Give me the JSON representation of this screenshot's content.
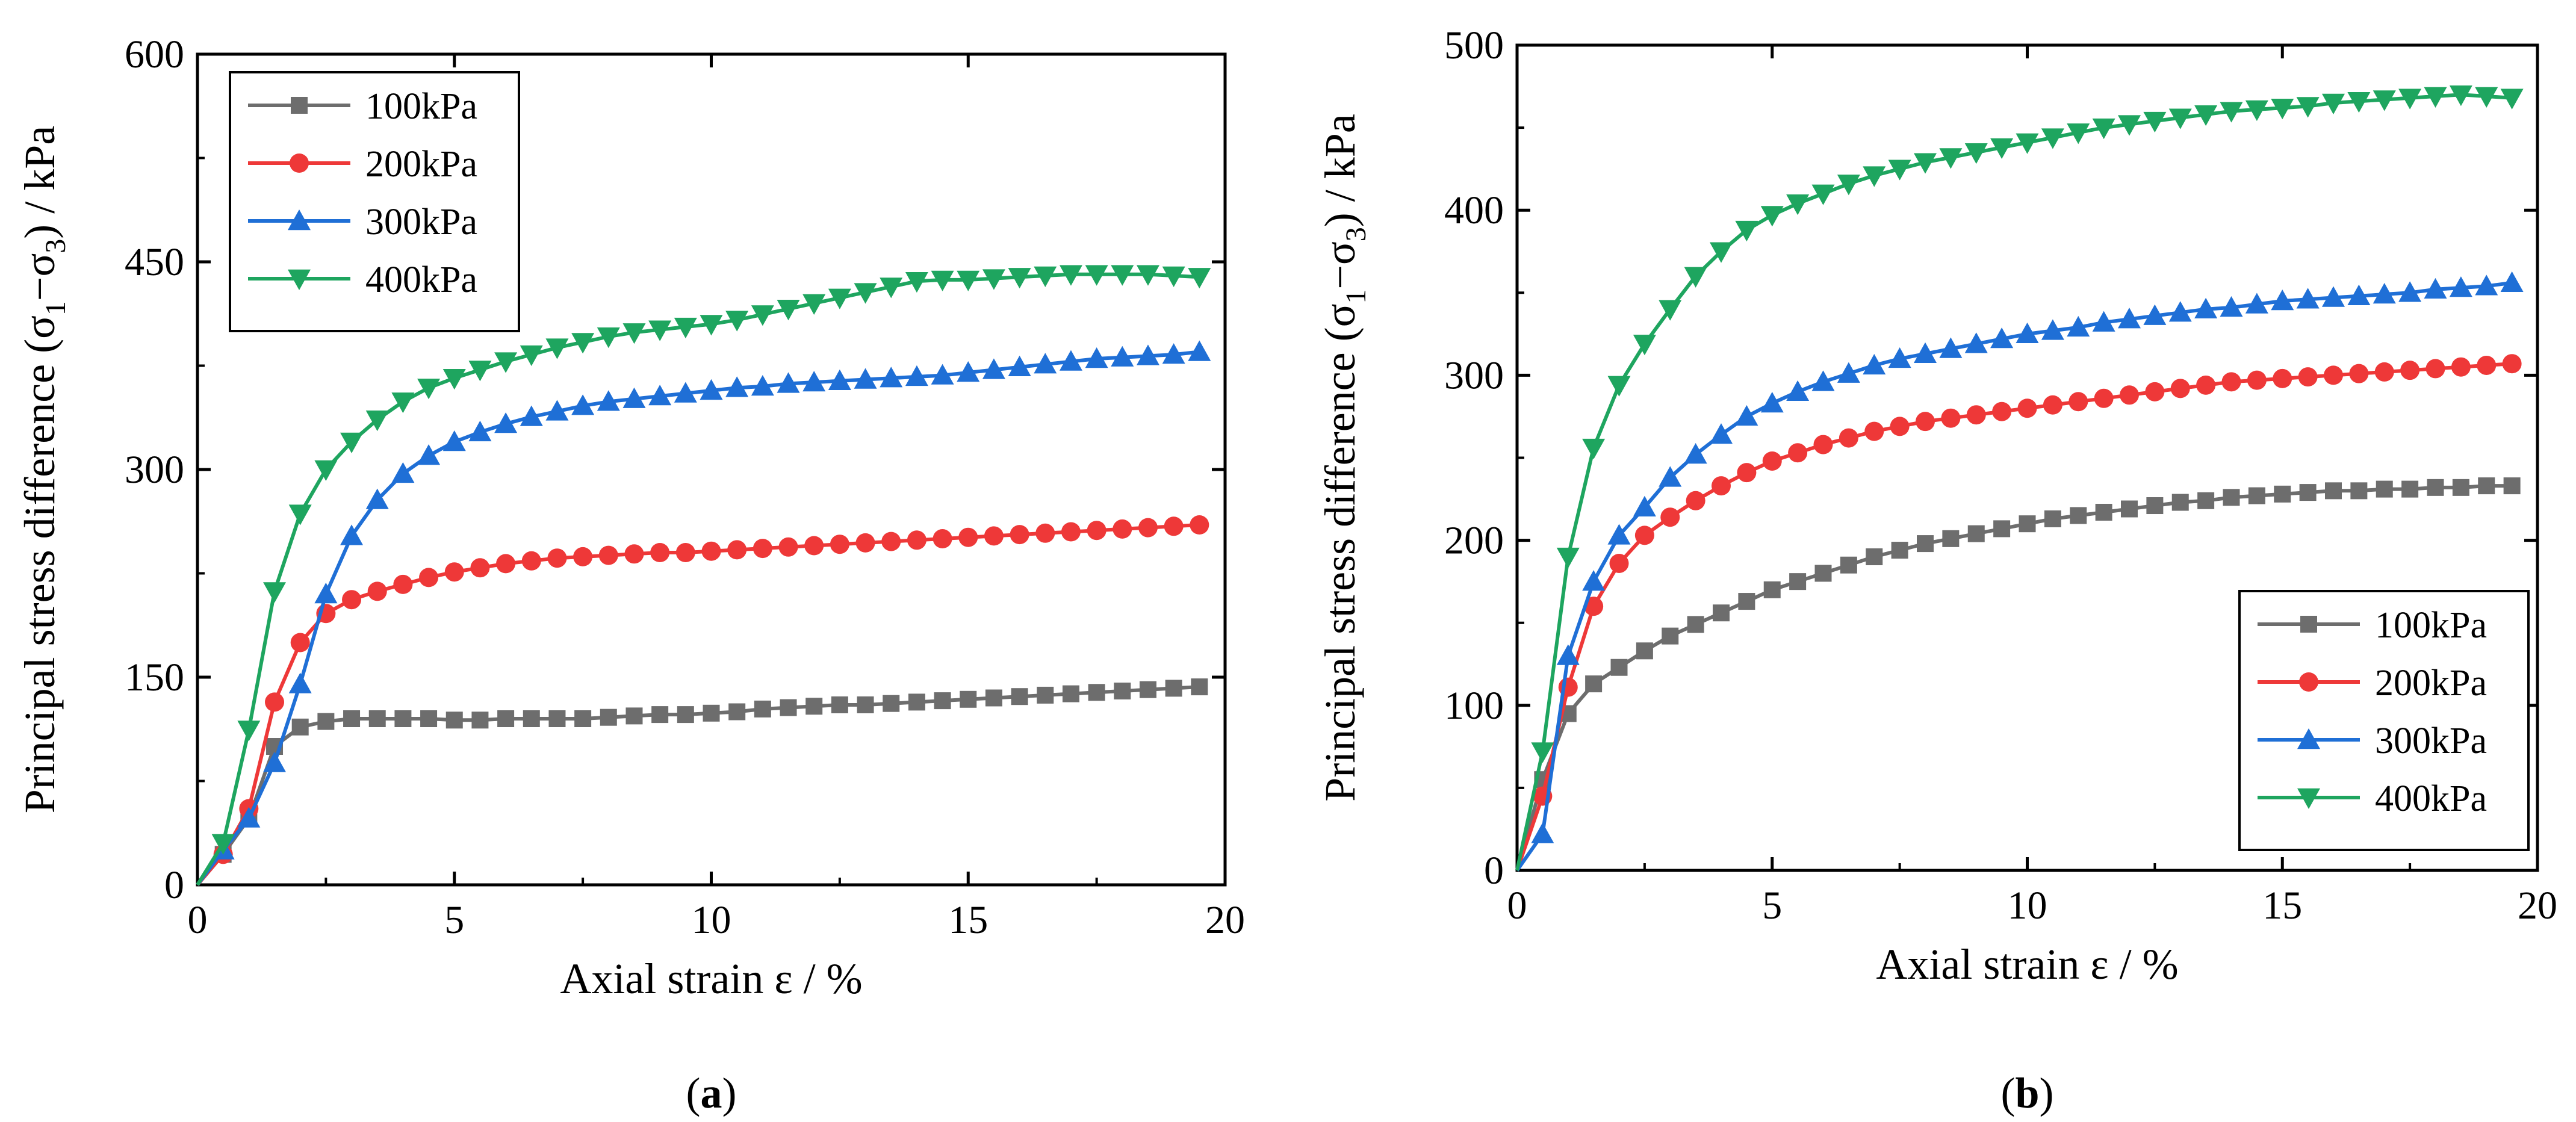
{
  "chart_data": [
    {
      "type": "line",
      "panel_label": "a",
      "xlabel": "Axial strain ε / %",
      "ylabel_prefix": "Principal stress difference  (σ",
      "ylabel_sub1": "1",
      "ylabel_mid": "−σ",
      "ylabel_sub3": "3",
      "ylabel_suffix": ") / kPa",
      "xlim": [
        0,
        20
      ],
      "ylim": [
        0,
        600
      ],
      "xticks": [
        0,
        5,
        10,
        15,
        20
      ],
      "yticks": [
        0,
        150,
        300,
        450,
        600
      ],
      "legend_position": "top-left",
      "series": [
        {
          "name": "100kPa",
          "color": "#6d6d6d",
          "marker": "square",
          "x": [
            0,
            0.5,
            1,
            1.5,
            2,
            2.5,
            3,
            3.5,
            4,
            4.5,
            5,
            5.5,
            6,
            6.5,
            7,
            7.5,
            8,
            8.5,
            9,
            9.5,
            10,
            10.5,
            11,
            11.5,
            12,
            12.5,
            13,
            13.5,
            14,
            14.5,
            15,
            15.5,
            16,
            16.5,
            17,
            17.5,
            18,
            18.5,
            19,
            19.5
          ],
          "y": [
            0,
            22,
            48,
            100,
            114,
            118,
            120,
            120,
            120,
            120,
            119,
            119,
            120,
            120,
            120,
            120,
            121,
            122,
            123,
            123,
            124,
            125,
            127,
            128,
            129,
            130,
            130,
            131,
            132,
            133,
            134,
            135,
            136,
            137,
            138,
            139,
            140,
            141,
            142,
            143
          ]
        },
        {
          "name": "200kPa",
          "color": "#ee3838",
          "marker": "circle",
          "x": [
            0,
            0.5,
            1,
            1.5,
            2,
            2.5,
            3,
            3.5,
            4,
            4.5,
            5,
            5.5,
            6,
            6.5,
            7,
            7.5,
            8,
            8.5,
            9,
            9.5,
            10,
            10.5,
            11,
            11.5,
            12,
            12.5,
            13,
            13.5,
            14,
            14.5,
            15,
            15.5,
            16,
            16.5,
            17,
            17.5,
            18,
            18.5,
            19,
            19.5
          ],
          "y": [
            0,
            22,
            55,
            132,
            175,
            196,
            206,
            212,
            217,
            222,
            226,
            229,
            232,
            234,
            236,
            237,
            238,
            239,
            240,
            240,
            241,
            242,
            243,
            244,
            245,
            246,
            247,
            248,
            249,
            250,
            251,
            252,
            253,
            254,
            255,
            256,
            257,
            258,
            259,
            260
          ]
        },
        {
          "name": "300kPa",
          "color": "#1f6fd6",
          "marker": "triangle-up",
          "x": [
            0,
            0.5,
            1,
            1.5,
            2,
            2.5,
            3,
            3.5,
            4,
            4.5,
            5,
            5.5,
            6,
            6.5,
            7,
            7.5,
            8,
            8.5,
            9,
            9.5,
            10,
            10.5,
            11,
            11.5,
            12,
            12.5,
            13,
            13.5,
            14,
            14.5,
            15,
            15.5,
            16,
            16.5,
            17,
            17.5,
            18,
            18.5,
            19,
            19.5
          ],
          "y": [
            0,
            25,
            48,
            88,
            145,
            210,
            252,
            278,
            297,
            310,
            320,
            327,
            333,
            338,
            342,
            346,
            349,
            351,
            353,
            355,
            357,
            359,
            360,
            362,
            363,
            364,
            365,
            366,
            367,
            368,
            370,
            372,
            374,
            376,
            378,
            380,
            381,
            382,
            383,
            385
          ]
        },
        {
          "name": "400kPa",
          "color": "#1ea55f",
          "marker": "triangle-down",
          "x": [
            0,
            0.5,
            1,
            1.5,
            2,
            2.5,
            3,
            3.5,
            4,
            4.5,
            5,
            5.5,
            6,
            6.5,
            7,
            7.5,
            8,
            8.5,
            9,
            9.5,
            10,
            10.5,
            11,
            11.5,
            12,
            12.5,
            13,
            13.5,
            14,
            14.5,
            15,
            15.5,
            16,
            16.5,
            17,
            17.5,
            18,
            18.5,
            19,
            19.5
          ],
          "y": [
            0,
            30,
            112,
            212,
            268,
            300,
            320,
            336,
            349,
            359,
            366,
            372,
            378,
            383,
            388,
            392,
            396,
            399,
            401,
            403,
            405,
            408,
            412,
            416,
            420,
            424,
            428,
            432,
            436,
            437,
            437,
            438,
            439,
            440,
            441,
            441,
            441,
            441,
            440,
            439
          ]
        }
      ]
    },
    {
      "type": "line",
      "panel_label": "b",
      "xlabel": "Axial strain ε / %",
      "ylabel_prefix": "Principal stress difference  (σ",
      "ylabel_sub1": "1",
      "ylabel_mid": "−σ",
      "ylabel_sub3": "3",
      "ylabel_suffix": ") / kPa",
      "xlim": [
        0,
        20
      ],
      "ylim": [
        0,
        500
      ],
      "xticks": [
        0,
        5,
        10,
        15,
        20
      ],
      "yticks": [
        0,
        100,
        200,
        300,
        400,
        500
      ],
      "legend_position": "bottom-right",
      "series": [
        {
          "name": "100kPa",
          "color": "#6d6d6d",
          "marker": "square",
          "x": [
            0,
            0.5,
            1,
            1.5,
            2,
            2.5,
            3,
            3.5,
            4,
            4.5,
            5,
            5.5,
            6,
            6.5,
            7,
            7.5,
            8,
            8.5,
            9,
            9.5,
            10,
            10.5,
            11,
            11.5,
            12,
            12.5,
            13,
            13.5,
            14,
            14.5,
            15,
            15.5,
            16,
            16.5,
            17,
            17.5,
            18,
            18.5,
            19,
            19.5
          ],
          "y": [
            0,
            55,
            95,
            113,
            123,
            133,
            142,
            149,
            156,
            163,
            170,
            175,
            180,
            185,
            190,
            194,
            198,
            201,
            204,
            207,
            210,
            213,
            215,
            217,
            219,
            221,
            223,
            224,
            226,
            227,
            228,
            229,
            230,
            230,
            231,
            231,
            232,
            232,
            233,
            233
          ]
        },
        {
          "name": "200kPa",
          "color": "#ee3838",
          "marker": "circle",
          "x": [
            0,
            0.5,
            1,
            1.5,
            2,
            2.5,
            3,
            3.5,
            4,
            4.5,
            5,
            5.5,
            6,
            6.5,
            7,
            7.5,
            8,
            8.5,
            9,
            9.5,
            10,
            10.5,
            11,
            11.5,
            12,
            12.5,
            13,
            13.5,
            14,
            14.5,
            15,
            15.5,
            16,
            16.5,
            17,
            17.5,
            18,
            18.5,
            19,
            19.5
          ],
          "y": [
            0,
            45,
            111,
            160,
            186,
            203,
            214,
            224,
            233,
            241,
            248,
            253,
            258,
            262,
            266,
            269,
            272,
            274,
            276,
            278,
            280,
            282,
            284,
            286,
            288,
            290,
            292,
            294,
            296,
            297,
            298,
            299,
            300,
            301,
            302,
            303,
            304,
            305,
            306,
            307
          ]
        },
        {
          "name": "300kPa",
          "color": "#1f6fd6",
          "marker": "triangle-up",
          "x": [
            0,
            0.5,
            1,
            1.5,
            2,
            2.5,
            3,
            3.5,
            4,
            4.5,
            5,
            5.5,
            6,
            6.5,
            7,
            7.5,
            8,
            8.5,
            9,
            9.5,
            10,
            10.5,
            11,
            11.5,
            12,
            12.5,
            13,
            13.5,
            14,
            14.5,
            15,
            15.5,
            16,
            16.5,
            17,
            17.5,
            18,
            18.5,
            19,
            19.5
          ],
          "y": [
            0,
            22,
            130,
            175,
            203,
            220,
            238,
            252,
            264,
            275,
            283,
            290,
            296,
            301,
            306,
            310,
            313,
            316,
            319,
            322,
            325,
            327,
            329,
            332,
            334,
            336,
            338,
            340,
            341,
            343,
            345,
            346,
            347,
            348,
            349,
            350,
            352,
            353,
            354,
            356
          ]
        },
        {
          "name": "400kPa",
          "color": "#1ea55f",
          "marker": "triangle-down",
          "x": [
            0,
            0.5,
            1,
            1.5,
            2,
            2.5,
            3,
            3.5,
            4,
            4.5,
            5,
            5.5,
            6,
            6.5,
            7,
            7.5,
            8,
            8.5,
            9,
            9.5,
            10,
            10.5,
            11,
            11.5,
            12,
            12.5,
            13,
            13.5,
            14,
            14.5,
            15,
            15.5,
            16,
            16.5,
            17,
            17.5,
            18,
            18.5,
            19,
            19.5
          ],
          "y": [
            0,
            72,
            190,
            256,
            294,
            319,
            340,
            360,
            375,
            388,
            397,
            404,
            410,
            416,
            421,
            425,
            429,
            432,
            435,
            438,
            441,
            444,
            447,
            450,
            452,
            454,
            456,
            458,
            460,
            461,
            462,
            463,
            465,
            466,
            467,
            468,
            469,
            470,
            469,
            468
          ]
        }
      ]
    }
  ]
}
